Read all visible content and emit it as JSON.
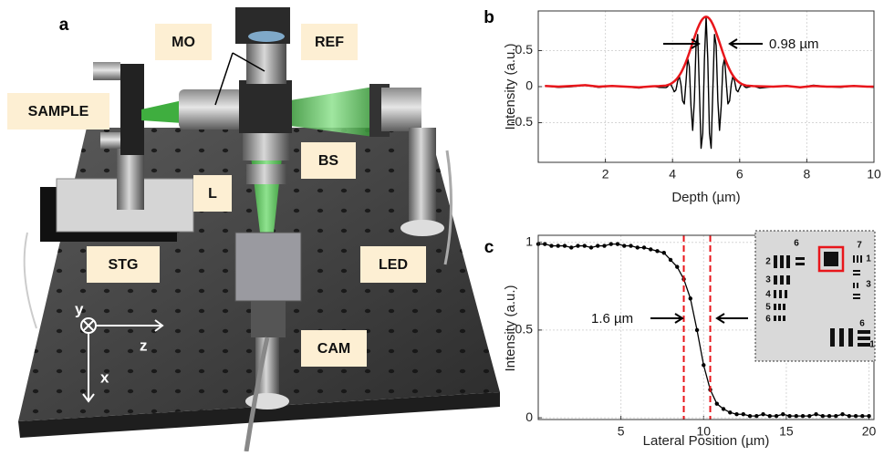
{
  "setup": {
    "letter": "a",
    "labels": [
      "MO",
      "REF",
      "SAMPLE",
      "BS",
      "L",
      "STG",
      "LED",
      "CAM"
    ],
    "axes": [
      "y",
      "z",
      "x"
    ]
  },
  "inset": {
    "labels": [
      "6",
      "7",
      "2",
      "3",
      "4",
      "5",
      "6",
      "1",
      "3",
      "6",
      "1"
    ]
  },
  "chart_data": [
    {
      "type": "line",
      "letter": "b",
      "xlabel": "Depth (µm)",
      "ylabel": "Intensity (a.u.)",
      "annotation": "0.98 µm",
      "xlim": [
        0,
        10
      ],
      "xticks": [
        2,
        4,
        6,
        8,
        10
      ],
      "ylim": [
        -1.05,
        1.05
      ],
      "yticks": [
        -0.5,
        0,
        0.5
      ],
      "grid": true,
      "x": [
        0.2,
        0.6,
        1,
        1.4,
        1.8,
        2.2,
        2.6,
        3,
        3.4,
        3.6,
        3.8,
        3.85,
        3.9,
        3.95,
        4,
        4.05,
        4.1,
        4.15,
        4.2,
        4.25,
        4.3,
        4.35,
        4.4,
        4.45,
        4.5,
        4.55,
        4.6,
        4.65,
        4.7,
        4.75,
        4.8,
        4.85,
        4.9,
        4.95,
        5,
        5.05,
        5.1,
        5.15,
        5.2,
        5.25,
        5.3,
        5.35,
        5.4,
        5.45,
        5.5,
        5.55,
        5.6,
        5.65,
        5.7,
        5.75,
        5.8,
        5.85,
        5.9,
        5.95,
        6,
        6.05,
        6.1,
        6.15,
        6.2,
        6.4,
        6.6,
        7,
        7.4,
        7.8,
        8.2,
        8.6,
        9,
        9.4,
        9.8,
        10
      ],
      "series": [
        {
          "color": "#000000",
          "width": 1.4,
          "values": [
            0.01,
            -0.01,
            0,
            0.02,
            -0.01,
            0.01,
            0,
            -0.02,
            0.01,
            -0.01,
            -0.014,
            -0.001,
            0.026,
            0.031,
            -0.016,
            -0.071,
            -0.047,
            0.072,
            0.149,
            0.033,
            -0.197,
            -0.24,
            0.063,
            0.394,
            0.281,
            -0.27,
            -0.607,
            -0.197,
            0.573,
            0.724,
            -0.05,
            -0.855,
            -0.647,
            0.381,
            0.97,
            0.381,
            -0.647,
            -0.855,
            -0.05,
            0.724,
            0.573,
            -0.197,
            -0.607,
            -0.27,
            0.281,
            0.394,
            0.063,
            -0.24,
            -0.197,
            0.033,
            0.149,
            0.072,
            -0.047,
            -0.071,
            -0.016,
            0.031,
            0.026,
            -0.001,
            -0.014,
            0.01,
            -0.02,
            0,
            0.01,
            -0.01,
            0.02,
            0,
            -0.01,
            0.01,
            0,
            -0.01
          ]
        },
        {
          "color": "#e8161b",
          "width": 2.5,
          "values": [
            0.01,
            0,
            0.01,
            0.02,
            0,
            0.01,
            0,
            -0.01,
            0.005,
            0.008,
            0.015,
            0.021,
            0.029,
            0.04,
            0.054,
            0.072,
            0.094,
            0.121,
            0.153,
            0.191,
            0.236,
            0.287,
            0.343,
            0.405,
            0.471,
            0.541,
            0.611,
            0.681,
            0.748,
            0.81,
            0.864,
            0.909,
            0.942,
            0.963,
            0.97,
            0.963,
            0.942,
            0.909,
            0.864,
            0.81,
            0.748,
            0.681,
            0.611,
            0.541,
            0.471,
            0.405,
            0.343,
            0.287,
            0.236,
            0.191,
            0.153,
            0.121,
            0.094,
            0.072,
            0.054,
            0.04,
            0.029,
            0.021,
            0.015,
            0.008,
            0.005,
            0,
            0.01,
            -0.01,
            0.01,
            0,
            0,
            0.01,
            0,
            0
          ]
        }
      ]
    },
    {
      "type": "line",
      "letter": "c",
      "xlabel": "Lateral Position (µm)",
      "ylabel": "Intensity (a.u.)",
      "annotation": "1.6 µm",
      "xlim": [
        0,
        20.3
      ],
      "xticks": [
        5,
        10,
        15,
        20
      ],
      "ylim": [
        -0.01,
        1.04
      ],
      "yticks": [
        0,
        0.5,
        1
      ],
      "grid": true,
      "x": [
        0,
        0.4,
        0.8,
        1.2,
        1.6,
        2,
        2.4,
        2.8,
        3.2,
        3.6,
        4,
        4.4,
        4.8,
        5.2,
        5.6,
        6,
        6.4,
        6.8,
        7.2,
        7.6,
        8,
        8.4,
        8.8,
        9.2,
        9.6,
        10,
        10.4,
        10.8,
        11.2,
        11.6,
        12,
        12.4,
        12.8,
        13.2,
        13.6,
        14,
        14.4,
        14.8,
        15.2,
        15.6,
        16,
        16.4,
        16.8,
        17.2,
        17.6,
        18,
        18.4,
        18.8,
        19.2,
        19.6,
        20
      ],
      "series": [
        {
          "color": "#000000",
          "width": 1.3,
          "marker": "o",
          "values": [
            0.99,
            0.99,
            0.98,
            0.98,
            0.98,
            0.97,
            0.98,
            0.98,
            0.97,
            0.98,
            0.98,
            0.99,
            0.99,
            0.98,
            0.98,
            0.97,
            0.97,
            0.96,
            0.95,
            0.94,
            0.9,
            0.86,
            0.79,
            0.68,
            0.5,
            0.3,
            0.16,
            0.08,
            0.05,
            0.03,
            0.02,
            0.02,
            0.01,
            0.01,
            0.02,
            0.01,
            0.01,
            0.02,
            0.01,
            0.01,
            0.01,
            0.01,
            0.02,
            0.01,
            0.01,
            0.01,
            0.02,
            0.01,
            0.01,
            0.01,
            0.01
          ]
        }
      ],
      "vlines": {
        "values": [
          8.8,
          10.4
        ],
        "color": "#e8161b"
      }
    }
  ]
}
